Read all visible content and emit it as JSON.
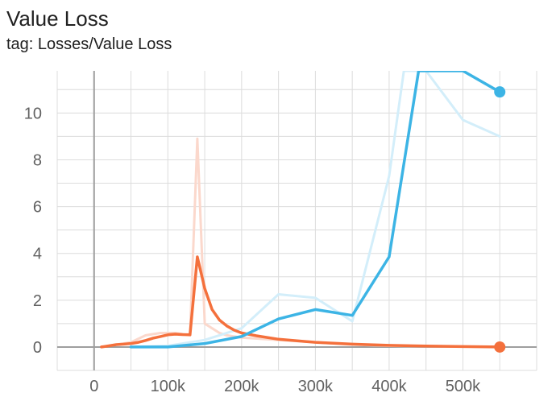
{
  "chart_title": "Value Loss",
  "chart_subtitle": "tag: Losses/Value Loss",
  "chart_data": {
    "type": "line",
    "title": "Value Loss",
    "subtitle": "tag: Losses/Value Loss",
    "xlabel": "",
    "ylabel": "",
    "xlim": [
      -50000,
      600000
    ],
    "ylim": [
      -1.0,
      11.8
    ],
    "grid": true,
    "x_ticks": [
      0,
      100000,
      200000,
      300000,
      400000,
      500000
    ],
    "x_tick_labels": [
      "0",
      "100k",
      "200k",
      "300k",
      "400k",
      "500k"
    ],
    "y_ticks": [
      0,
      2,
      4,
      6,
      8,
      10
    ],
    "y_tick_labels": [
      "0",
      "2",
      "4",
      "6",
      "8",
      "10"
    ],
    "series": [
      {
        "color": "#f4703c",
        "raw_color": "#fbd8cc",
        "raw": {
          "x": [
            10000,
            30000,
            50000,
            70000,
            90000,
            110000,
            130000,
            140000,
            150000,
            160000,
            170000,
            180000,
            200000,
            250000,
            300000,
            350000,
            400000,
            450000,
            500000,
            550000
          ],
          "y": [
            0.0,
            0.1,
            0.2,
            0.5,
            0.6,
            0.6,
            0.5,
            8.9,
            1.0,
            0.8,
            0.6,
            0.5,
            0.4,
            0.3,
            0.2,
            0.1,
            0.05,
            0.03,
            0.02,
            0.01
          ]
        },
        "smoothed": {
          "x": [
            10000,
            20000,
            30000,
            40000,
            50000,
            60000,
            70000,
            80000,
            90000,
            100000,
            110000,
            120000,
            130000,
            140000,
            150000,
            160000,
            170000,
            180000,
            190000,
            200000,
            220000,
            250000,
            300000,
            350000,
            400000,
            450000,
            500000,
            550000
          ],
          "y": [
            0.0,
            0.05,
            0.1,
            0.12,
            0.15,
            0.2,
            0.28,
            0.38,
            0.45,
            0.52,
            0.55,
            0.53,
            0.52,
            3.85,
            2.5,
            1.6,
            1.15,
            0.9,
            0.72,
            0.6,
            0.48,
            0.33,
            0.2,
            0.12,
            0.07,
            0.04,
            0.02,
            0.0
          ]
        },
        "last_point": {
          "x": 550000,
          "y": 0.0
        }
      },
      {
        "color": "#3cb4e5",
        "raw_color": "#d3eefa",
        "raw": {
          "x": [
            50000,
            100000,
            150000,
            200000,
            250000,
            300000,
            350000,
            400000,
            420000,
            450000,
            500000,
            550000
          ],
          "y": [
            0.0,
            0.05,
            0.3,
            0.8,
            2.25,
            2.1,
            1.1,
            7.3,
            11.8,
            11.8,
            9.7,
            9.0
          ]
        },
        "smoothed": {
          "x": [
            50000,
            100000,
            150000,
            200000,
            250000,
            300000,
            350000,
            400000,
            440000,
            500000,
            550000
          ],
          "y": [
            0.0,
            0.0,
            0.15,
            0.45,
            1.2,
            1.6,
            1.35,
            3.85,
            11.8,
            11.8,
            10.9
          ]
        },
        "last_point": {
          "x": 550000,
          "y": 10.9
        }
      }
    ]
  }
}
